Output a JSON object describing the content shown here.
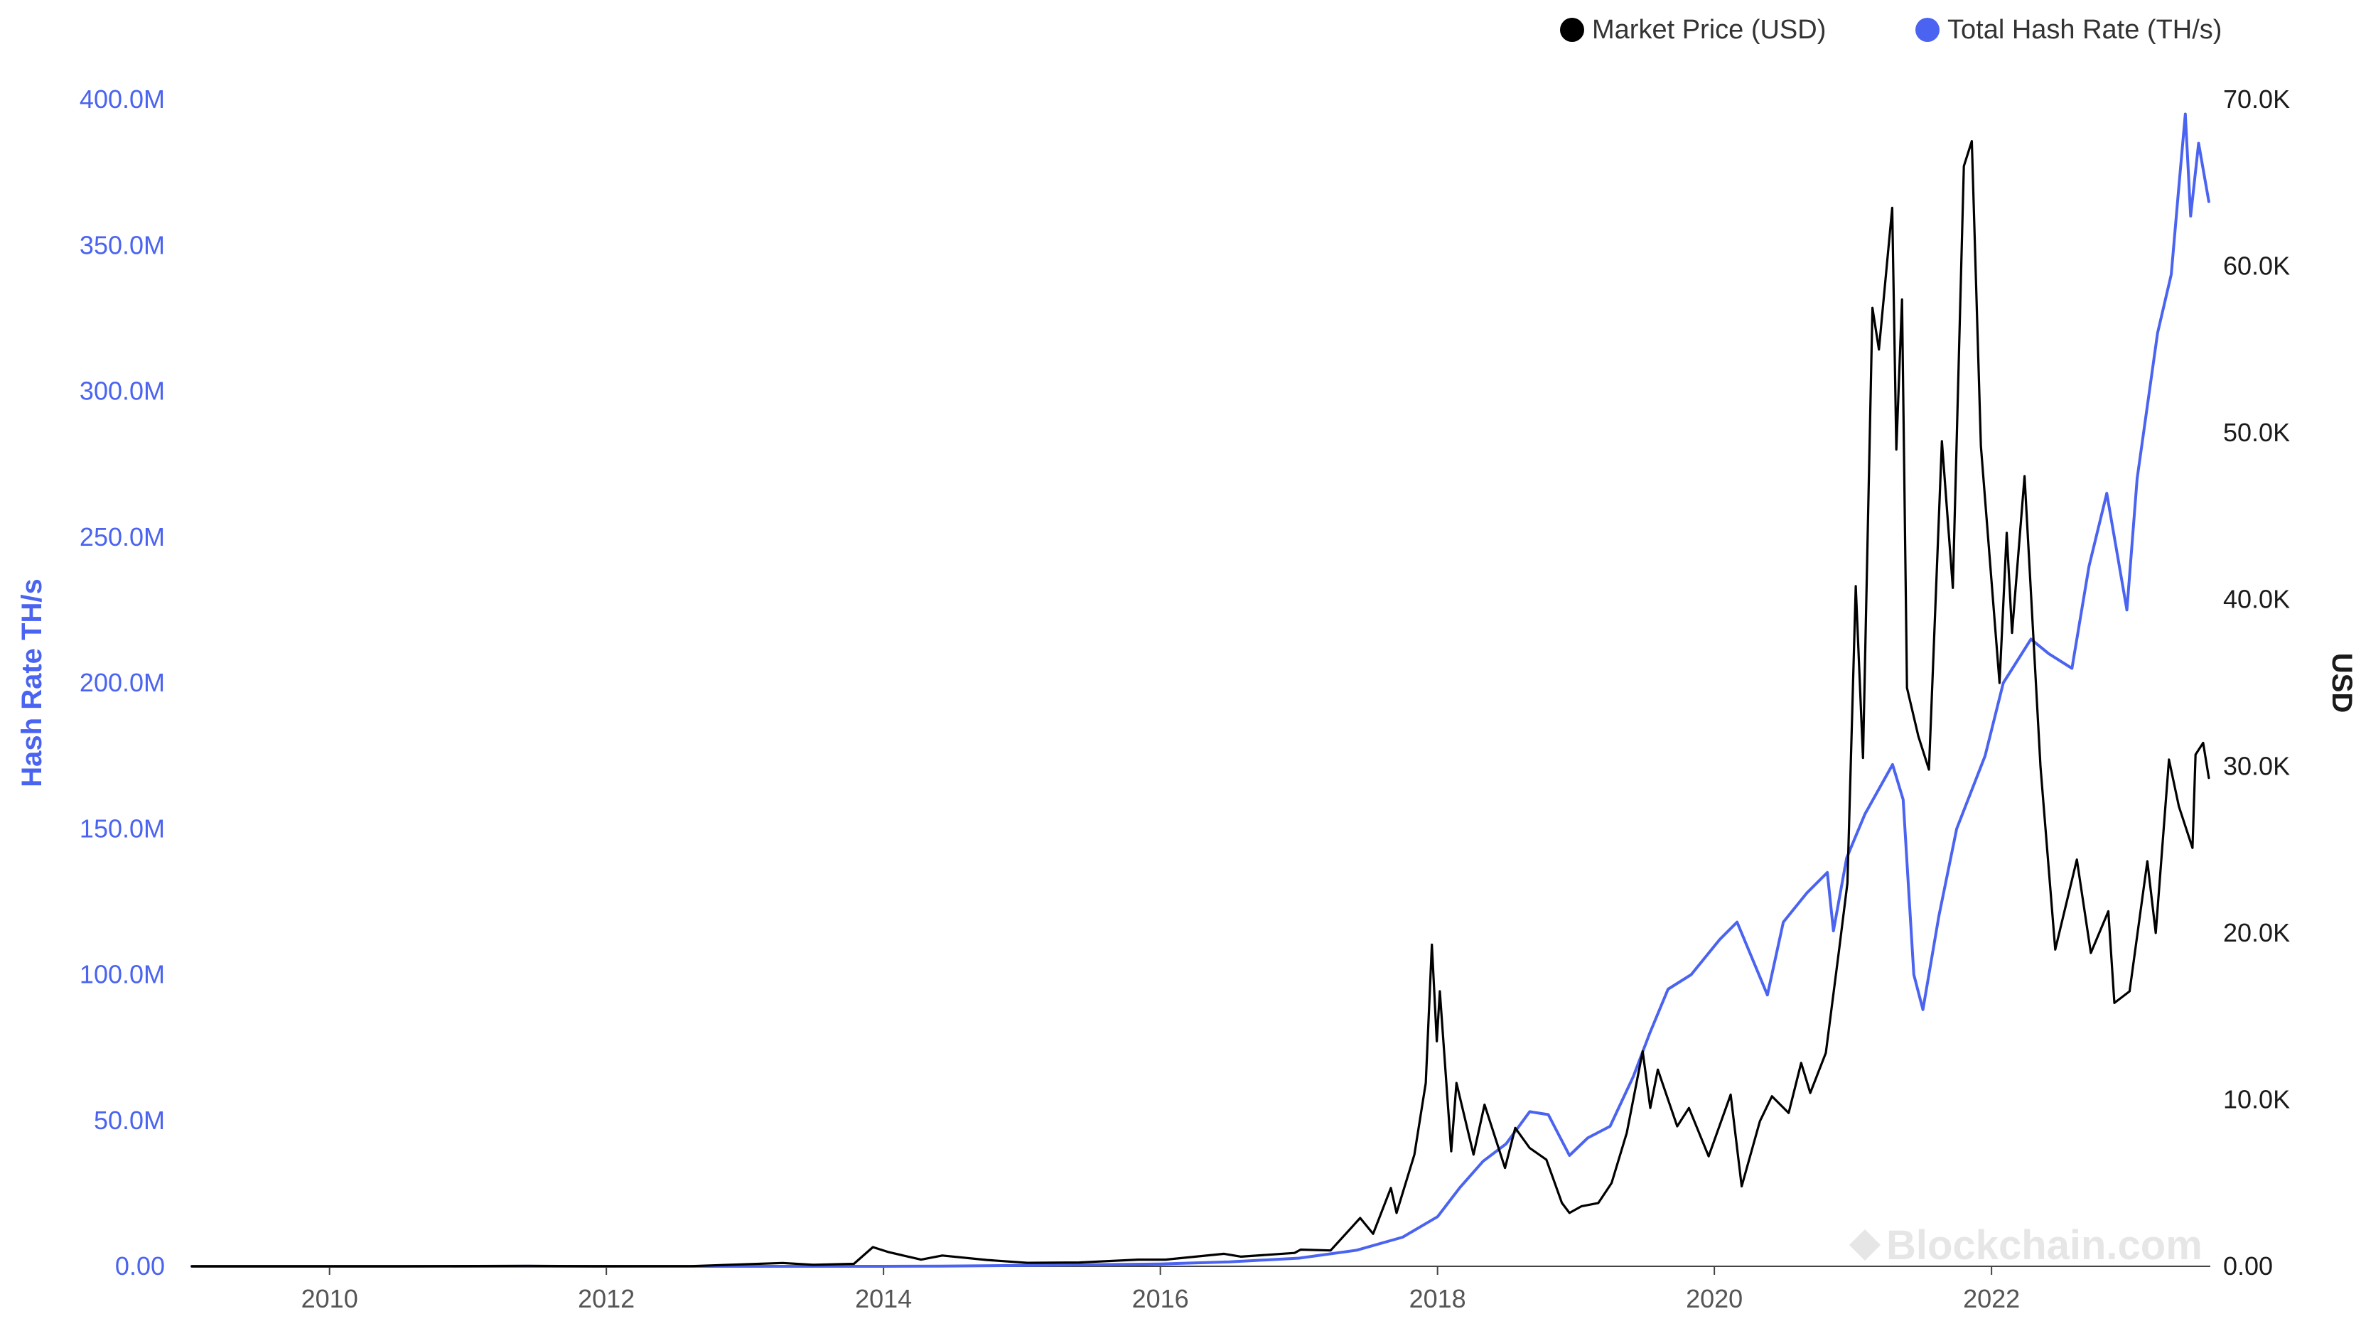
{
  "chart_data": {
    "type": "line",
    "legend_placement": "top-right",
    "grid": false,
    "watermark": "Blockchain.com",
    "x_ticks": [
      "2010",
      "2012",
      "2014",
      "2016",
      "2018",
      "2020",
      "2022"
    ],
    "y_left": {
      "label": "Hash Rate TH/s",
      "range": [
        0,
        400000000
      ],
      "ticks": [
        "0.00",
        "50.0M",
        "100.0M",
        "150.0M",
        "200.0M",
        "250.0M",
        "300.0M",
        "350.0M",
        "400.0M"
      ],
      "color": "#4a63f0"
    },
    "y_right": {
      "label": "USD",
      "range": [
        0,
        70000
      ],
      "ticks": [
        "0.00",
        "10.0K",
        "20.0K",
        "30.0K",
        "40.0K",
        "50.0K",
        "60.0K",
        "70.0K"
      ],
      "color": "#000000"
    },
    "series": [
      {
        "name": "Market Price (USD)",
        "axis": "right",
        "color": "#000000",
        "points": [
          [
            "2009-01-03",
            0
          ],
          [
            "2010-07-01",
            0.06
          ],
          [
            "2011-06-08",
            30
          ],
          [
            "2011-12-01",
            3
          ],
          [
            "2012-08-15",
            12
          ],
          [
            "2013-04-10",
            200
          ],
          [
            "2013-07-01",
            90
          ],
          [
            "2013-10-15",
            150
          ],
          [
            "2013-12-04",
            1150
          ],
          [
            "2014-01-15",
            850
          ],
          [
            "2014-04-10",
            400
          ],
          [
            "2014-06-05",
            650
          ],
          [
            "2014-10-01",
            380
          ],
          [
            "2015-01-15",
            210
          ],
          [
            "2015-06-01",
            230
          ],
          [
            "2015-11-04",
            400
          ],
          [
            "2016-01-15",
            400
          ],
          [
            "2016-06-17",
            750
          ],
          [
            "2016-08-01",
            580
          ],
          [
            "2016-12-20",
            800
          ],
          [
            "2017-01-05",
            1000
          ],
          [
            "2017-03-25",
            950
          ],
          [
            "2017-06-11",
            2900
          ],
          [
            "2017-07-15",
            1950
          ],
          [
            "2017-08-31",
            4700
          ],
          [
            "2017-09-15",
            3200
          ],
          [
            "2017-11-01",
            6700
          ],
          [
            "2017-12-01",
            11000
          ],
          [
            "2017-12-17",
            19300
          ],
          [
            "2017-12-30",
            13500
          ],
          [
            "2018-01-07",
            16500
          ],
          [
            "2018-02-06",
            6900
          ],
          [
            "2018-02-20",
            11000
          ],
          [
            "2018-04-06",
            6700
          ],
          [
            "2018-05-05",
            9700
          ],
          [
            "2018-06-28",
            5900
          ],
          [
            "2018-07-25",
            8300
          ],
          [
            "2018-09-01",
            7100
          ],
          [
            "2018-10-15",
            6400
          ],
          [
            "2018-11-25",
            3800
          ],
          [
            "2018-12-15",
            3200
          ],
          [
            "2019-01-15",
            3600
          ],
          [
            "2019-03-01",
            3800
          ],
          [
            "2019-04-05",
            5000
          ],
          [
            "2019-05-15",
            8000
          ],
          [
            "2019-06-26",
            12900
          ],
          [
            "2019-07-16",
            9500
          ],
          [
            "2019-08-05",
            11800
          ],
          [
            "2019-09-25",
            8400
          ],
          [
            "2019-10-26",
            9500
          ],
          [
            "2019-12-17",
            6600
          ],
          [
            "2020-02-13",
            10300
          ],
          [
            "2020-03-13",
            4800
          ],
          [
            "2020-04-30",
            8700
          ],
          [
            "2020-06-01",
            10200
          ],
          [
            "2020-07-15",
            9200
          ],
          [
            "2020-08-17",
            12200
          ],
          [
            "2020-09-10",
            10400
          ],
          [
            "2020-10-21",
            12800
          ],
          [
            "2020-11-25",
            19000
          ],
          [
            "2020-12-17",
            23000
          ],
          [
            "2021-01-08",
            40800
          ],
          [
            "2021-01-27",
            30500
          ],
          [
            "2021-02-21",
            57500
          ],
          [
            "2021-03-10",
            55000
          ],
          [
            "2021-04-14",
            63500
          ],
          [
            "2021-04-25",
            49000
          ],
          [
            "2021-05-10",
            58000
          ],
          [
            "2021-05-23",
            34700
          ],
          [
            "2021-06-22",
            31800
          ],
          [
            "2021-07-20",
            29800
          ],
          [
            "2021-08-23",
            49500
          ],
          [
            "2021-09-21",
            40700
          ],
          [
            "2021-10-20",
            66000
          ],
          [
            "2021-11-10",
            67500
          ],
          [
            "2021-12-04",
            49200
          ],
          [
            "2022-01-22",
            35000
          ],
          [
            "2022-02-10",
            44000
          ],
          [
            "2022-02-24",
            38000
          ],
          [
            "2022-03-29",
            47400
          ],
          [
            "2022-05-10",
            30000
          ],
          [
            "2022-06-18",
            19000
          ],
          [
            "2022-08-14",
            24400
          ],
          [
            "2022-09-20",
            18800
          ],
          [
            "2022-11-05",
            21300
          ],
          [
            "2022-11-21",
            15800
          ],
          [
            "2022-12-31",
            16500
          ],
          [
            "2023-02-16",
            24300
          ],
          [
            "2023-03-10",
            20000
          ],
          [
            "2023-04-14",
            30400
          ],
          [
            "2023-05-10",
            27600
          ],
          [
            "2023-06-15",
            25100
          ],
          [
            "2023-06-23",
            30700
          ],
          [
            "2023-07-13",
            31400
          ],
          [
            "2023-07-28",
            29300
          ]
        ]
      },
      {
        "name": "Total Hash Rate (TH/s)",
        "axis": "left",
        "color": "#4a63f0",
        "points": [
          [
            "2009-01-03",
            0
          ],
          [
            "2013-06-01",
            0.1
          ],
          [
            "2014-01-01",
            10000
          ],
          [
            "2014-06-01",
            80000
          ],
          [
            "2015-01-01",
            300000
          ],
          [
            "2016-01-01",
            800000
          ],
          [
            "2016-07-01",
            1500000
          ],
          [
            "2017-01-01",
            2800000
          ],
          [
            "2017-06-01",
            5500000
          ],
          [
            "2017-10-01",
            10000000
          ],
          [
            "2018-01-01",
            17000000
          ],
          [
            "2018-03-01",
            27000000
          ],
          [
            "2018-05-01",
            36000000
          ],
          [
            "2018-07-01",
            42000000
          ],
          [
            "2018-09-01",
            53000000
          ],
          [
            "2018-10-20",
            52000000
          ],
          [
            "2018-12-15",
            38000000
          ],
          [
            "2019-02-01",
            44000000
          ],
          [
            "2019-04-01",
            48000000
          ],
          [
            "2019-06-01",
            65000000
          ],
          [
            "2019-07-15",
            80000000
          ],
          [
            "2019-09-01",
            95000000
          ],
          [
            "2019-11-01",
            100000000
          ],
          [
            "2020-01-15",
            112000000
          ],
          [
            "2020-03-01",
            118000000
          ],
          [
            "2020-05-20",
            93000000
          ],
          [
            "2020-07-01",
            118000000
          ],
          [
            "2020-09-01",
            128000000
          ],
          [
            "2020-10-25",
            135000000
          ],
          [
            "2020-11-10",
            115000000
          ],
          [
            "2020-12-15",
            140000000
          ],
          [
            "2021-02-01",
            155000000
          ],
          [
            "2021-04-15",
            172000000
          ],
          [
            "2021-05-13",
            160000000
          ],
          [
            "2021-06-10",
            100000000
          ],
          [
            "2021-07-04",
            88000000
          ],
          [
            "2021-08-15",
            120000000
          ],
          [
            "2021-10-01",
            150000000
          ],
          [
            "2021-12-15",
            175000000
          ],
          [
            "2022-02-01",
            200000000
          ],
          [
            "2022-04-15",
            215000000
          ],
          [
            "2022-06-01",
            210000000
          ],
          [
            "2022-08-01",
            205000000
          ],
          [
            "2022-09-15",
            240000000
          ],
          [
            "2022-11-01",
            265000000
          ],
          [
            "2022-12-24",
            225000000
          ],
          [
            "2023-01-20",
            270000000
          ],
          [
            "2023-03-15",
            320000000
          ],
          [
            "2023-04-20",
            340000000
          ],
          [
            "2023-05-10",
            370000000
          ],
          [
            "2023-05-27",
            395000000
          ],
          [
            "2023-06-10",
            360000000
          ],
          [
            "2023-07-01",
            385000000
          ],
          [
            "2023-07-28",
            365000000
          ]
        ]
      }
    ]
  }
}
